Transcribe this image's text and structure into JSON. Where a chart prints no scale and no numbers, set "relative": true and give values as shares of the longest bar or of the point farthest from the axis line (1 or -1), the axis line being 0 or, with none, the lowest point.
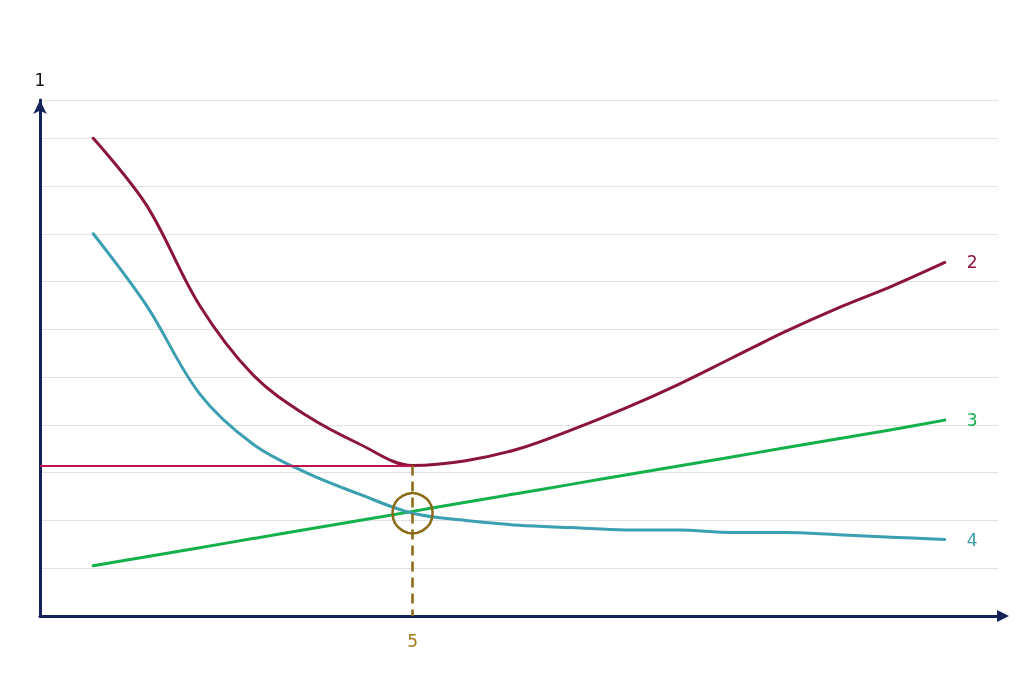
{
  "chart_data": {
    "type": "line",
    "relative": true,
    "ylabel": "1",
    "grid": "y",
    "legend": false,
    "marker": "none",
    "line_style": "solid",
    "categories": [
      null,
      null,
      null,
      null,
      null,
      null,
      null,
      null,
      null,
      null,
      null,
      null,
      null,
      null,
      null,
      null,
      null,
      null,
      null
    ],
    "series": [
      {
        "name": "2",
        "color": "#8b1538",
        "values": [
          null,
          1.0,
          0.86,
          0.65,
          0.505,
          0.42,
          0.36,
          0.315,
          0.325,
          0.35,
          0.39,
          0.435,
          0.485,
          0.54,
          0.595,
          0.645,
          0.69,
          0.74,
          null
        ]
      },
      {
        "name": "3",
        "color": "#13b04b",
        "values": [
          null,
          0.105,
          0.124,
          0.143,
          0.162,
          0.181,
          0.2,
          0.219,
          0.238,
          0.257,
          0.276,
          0.295,
          0.314,
          0.333,
          0.352,
          0.371,
          0.39,
          0.41,
          null
        ]
      },
      {
        "name": "4",
        "color": "#3a9fb0",
        "values": [
          null,
          0.8,
          0.65,
          0.465,
          0.36,
          0.3,
          0.255,
          0.215,
          0.2,
          0.19,
          0.185,
          0.18,
          0.18,
          0.175,
          0.175,
          0.17,
          0.165,
          0.16,
          null
        ]
      }
    ],
    "ref_lines": [
      {
        "axis": "y",
        "value": 0.315,
        "color": "#c0144c",
        "line_style": "solid"
      }
    ],
    "annotations": [
      "5"
    ]
  }
}
